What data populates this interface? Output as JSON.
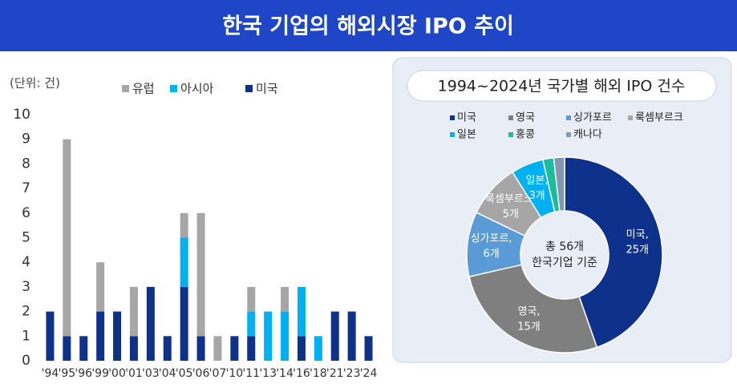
{
  "header": {
    "title": "한국 기업의 해외시장 IPO 추이"
  },
  "chart_data": [
    {
      "type": "bar",
      "stacked": true,
      "unit_label": "(단위: 건)",
      "categories": [
        "'94",
        "'95",
        "'96",
        "'99",
        "'00",
        "'01",
        "'03",
        "'04",
        "'05",
        "'06",
        "'07",
        "'10",
        "'11",
        "'13",
        "'14",
        "'16",
        "'18",
        "'21",
        "'23",
        "'24"
      ],
      "series": [
        {
          "name": "유럽",
          "color": "#a6a6a6",
          "values": [
            0,
            8,
            0,
            2,
            0,
            2,
            0,
            0,
            1,
            5,
            1,
            0,
            1,
            0,
            1,
            0,
            0,
            0,
            0,
            0
          ]
        },
        {
          "name": "아시아",
          "color": "#00b0f0",
          "values": [
            0,
            0,
            0,
            0,
            0,
            0,
            0,
            0,
            2,
            0,
            0,
            0,
            1,
            2,
            2,
            2,
            1,
            0,
            0,
            0
          ]
        },
        {
          "name": "미국",
          "color": "#0e318c",
          "values": [
            2,
            1,
            1,
            2,
            2,
            1,
            3,
            1,
            3,
            1,
            0,
            1,
            1,
            0,
            0,
            1,
            0,
            2,
            2,
            1
          ]
        }
      ],
      "ylim": [
        0,
        10
      ],
      "yticks": [
        0,
        1,
        2,
        3,
        4,
        5,
        6,
        7,
        8,
        9,
        10
      ],
      "grid": false
    },
    {
      "type": "pie",
      "title": "1994~2024년 국가별 해외 IPO 건수",
      "donut": true,
      "categories": [
        "미국",
        "영국",
        "싱가포르",
        "룩셈부르크",
        "일본",
        "홍콩",
        "캐나다"
      ],
      "values": [
        25,
        15,
        6,
        5,
        3,
        1,
        1
      ],
      "colors": [
        "#0e318c",
        "#7f7f7f",
        "#5b9bd5",
        "#a6a6a6",
        "#00b0f0",
        "#1abc9c",
        "#8497b0"
      ],
      "value_labels": [
        [
          "미국,",
          "25개"
        ],
        [
          "영국,",
          "15개"
        ],
        [
          "싱가포르,",
          "6개"
        ],
        [
          "룩셈부르크,",
          "5개"
        ],
        [
          "일본,",
          "3개"
        ],
        null,
        null
      ],
      "center_text": [
        "총 56개",
        "한국기업 기준"
      ]
    }
  ]
}
